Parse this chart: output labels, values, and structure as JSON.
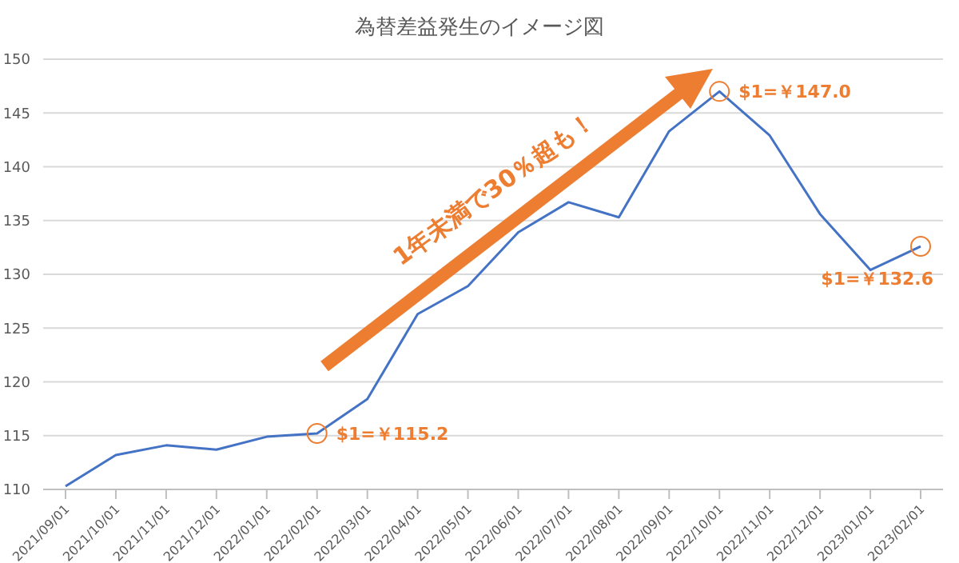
{
  "chart_data": {
    "type": "line",
    "title": "為替差益発生のイメージ図",
    "categories": [
      "2021/09/01",
      "2021/10/01",
      "2021/11/01",
      "2021/12/01",
      "2022/01/01",
      "2022/02/01",
      "2022/03/01",
      "2022/04/01",
      "2022/05/01",
      "2022/06/01",
      "2022/07/01",
      "2022/08/01",
      "2022/09/01",
      "2022/10/01",
      "2022/11/01",
      "2022/12/01",
      "2023/01/01",
      "2023/02/01"
    ],
    "series": [
      {
        "color": "#4472c4",
        "values": [
          110.3,
          113.2,
          114.1,
          113.7,
          114.9,
          115.2,
          118.4,
          126.3,
          128.9,
          133.9,
          136.7,
          135.3,
          143.3,
          147.0,
          142.9,
          135.6,
          130.4,
          132.6
        ]
      }
    ],
    "ylim": [
      110,
      150
    ],
    "yticks": [
      110,
      115,
      120,
      125,
      130,
      135,
      140,
      145,
      150
    ],
    "grid": "y",
    "marker": "none",
    "line_style": "solid",
    "annotations": [
      {
        "text": "$1=￥115.2",
        "x": "2022/02/01",
        "y": 115.2
      },
      {
        "text": "$1=￥147.0",
        "x": "2022/10/01",
        "y": 147.0
      },
      {
        "text": "$1=￥132.6",
        "x": "2023/02/01",
        "y": 132.6
      },
      "1年未満で30％超も！"
    ]
  }
}
